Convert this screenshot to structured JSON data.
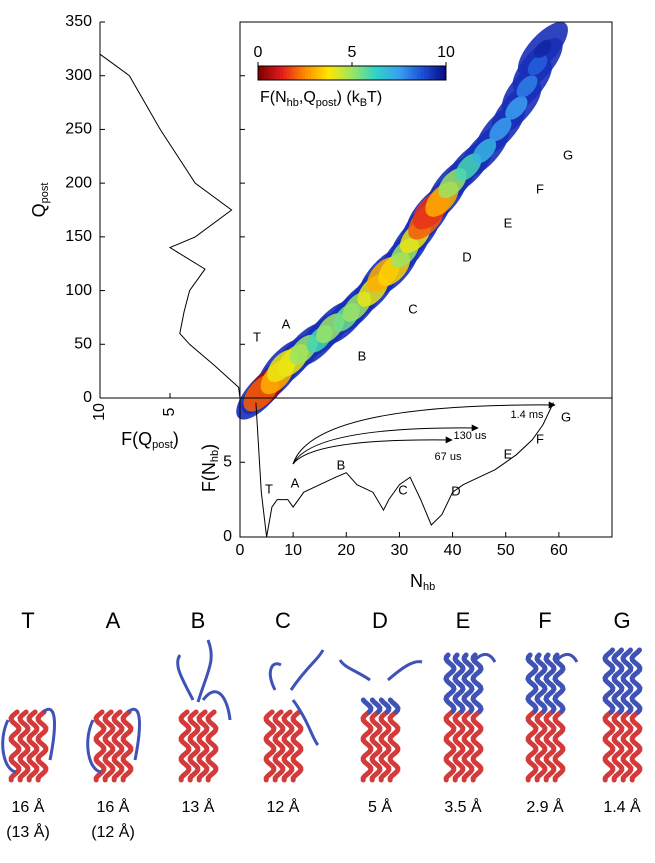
{
  "chart_data": [
    {
      "type": "heatmap",
      "x": [
        5,
        4,
        7,
        8,
        10,
        12,
        15,
        17,
        20,
        22,
        25,
        27,
        29,
        31,
        33,
        35,
        36,
        38,
        40,
        43,
        46,
        49,
        52,
        54,
        56,
        57
      ],
      "y": [
        10,
        5,
        20,
        30,
        35,
        45,
        55,
        65,
        75,
        85,
        100,
        115,
        120,
        135,
        150,
        165,
        175,
        185,
        200,
        215,
        230,
        250,
        270,
        290,
        310,
        325
      ],
      "values": [
        0.5,
        2,
        3,
        4,
        4,
        5,
        6,
        5,
        5.5,
        5,
        4,
        3,
        3.5,
        5,
        4,
        2,
        1.5,
        3,
        5,
        6,
        7,
        7.5,
        7.5,
        8,
        8.5,
        9.5
      ],
      "xlim": [
        0,
        70
      ],
      "ylim": [
        0,
        350
      ],
      "yticks": [
        0,
        50,
        100,
        150,
        200,
        250,
        300,
        350
      ],
      "ylabel": [
        "Q",
        "post"
      ],
      "colormap": [
        "#7a0000",
        "#e31a1c",
        "#ff8c00",
        "#ffe600",
        "#9be564",
        "#2fd3c8",
        "#3aa0f0",
        "#1c4fd8",
        "#0a0a80"
      ],
      "colorbar_lim": [
        0,
        10
      ],
      "colorbar_ticks": [
        0,
        5,
        10
      ],
      "colorbar_label": [
        "F(N",
        "hb",
        ",Q",
        "post",
        ")  (k",
        "B",
        "T)"
      ],
      "annotations": [
        "T",
        "A",
        "B",
        "C",
        "D",
        "E",
        "F",
        "G"
      ]
    },
    {
      "type": "line",
      "orientation": "vertical",
      "y": [
        0,
        10,
        30,
        50,
        60,
        80,
        100,
        120,
        140,
        150,
        175,
        200,
        250,
        300,
        320
      ],
      "values": [
        0,
        0.1,
        1.8,
        3.6,
        4.3,
        4,
        3.6,
        2.5,
        5,
        3.2,
        0.6,
        3.2,
        5.7,
        7.9,
        10
      ],
      "xlim": [
        10,
        0
      ],
      "xticks": [
        10,
        5
      ],
      "ylim": [
        0,
        350
      ],
      "xlabel": [
        "F(Q",
        "post",
        ")"
      ]
    },
    {
      "type": "line",
      "x": [
        3,
        4,
        5,
        6,
        7,
        9,
        10,
        12,
        15,
        18,
        20,
        22,
        25,
        27,
        28,
        30,
        32,
        34,
        36,
        38,
        40,
        42,
        45,
        48,
        50,
        52,
        55,
        57,
        59
      ],
      "values": [
        9,
        3,
        0,
        2,
        2.5,
        2.5,
        2,
        3,
        3.5,
        4,
        4.3,
        3.5,
        3,
        1.8,
        2.5,
        3.5,
        4,
        2.5,
        0.8,
        1.5,
        3,
        3.5,
        4,
        4.5,
        5,
        5.5,
        6.5,
        7.5,
        9
      ],
      "xlim": [
        0,
        70
      ],
      "xticks": [
        0,
        10,
        20,
        30,
        40,
        50,
        60
      ],
      "ylim": [
        0,
        9.3
      ],
      "yticks": [
        0,
        5
      ],
      "xlabel": [
        "N",
        "hb"
      ],
      "ylabel": [
        "F(N",
        "hb",
        ")"
      ],
      "annotations": [
        "T",
        "A",
        "B",
        "C",
        "D",
        "E",
        "F",
        "G"
      ],
      "arrows": [
        "67 us",
        "130 us",
        "1.4 ms"
      ]
    }
  ],
  "structures": [
    {
      "label": "T",
      "distance": "16 Å",
      "distance_alt": "(13 Å)"
    },
    {
      "label": "A",
      "distance": "16 Å",
      "distance_alt": "(12 Å)"
    },
    {
      "label": "B",
      "distance": "13 Å"
    },
    {
      "label": "C",
      "distance": "12 Å"
    },
    {
      "label": "D",
      "distance": "5 Å"
    },
    {
      "label": "E",
      "distance": "3.5 Å"
    },
    {
      "label": "F",
      "distance": "2.9 Å"
    },
    {
      "label": "G",
      "distance": "1.4 Å"
    }
  ]
}
